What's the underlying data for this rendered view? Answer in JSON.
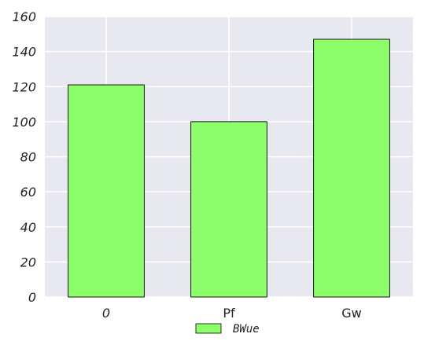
{
  "chart_data": {
    "type": "bar",
    "categories": [
      "0",
      "Pf",
      "Gw"
    ],
    "series": [
      {
        "name": "BWue",
        "values": [
          121,
          100,
          147
        ],
        "color": "#8cff6a"
      }
    ],
    "title": "",
    "xlabel": "",
    "ylabel": "",
    "ylim": [
      0,
      160
    ],
    "yticks": [
      0,
      20,
      40,
      60,
      80,
      100,
      120,
      140,
      160
    ],
    "grid": true,
    "background_color": "#e8e8f1",
    "grid_color": "#ffffff",
    "legend": {
      "placement": "bottom-center",
      "entries": [
        "BWue"
      ]
    }
  }
}
